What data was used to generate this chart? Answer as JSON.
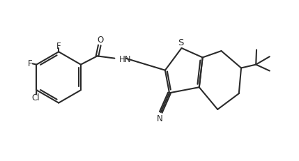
{
  "bg_color": "#ffffff",
  "line_color": "#2a2a2a",
  "line_width": 1.5,
  "figsize": [
    4.29,
    2.32
  ],
  "dpi": 100,
  "xlim": [
    0.0,
    10.5
  ],
  "ylim": [
    0.5,
    6.0
  ]
}
